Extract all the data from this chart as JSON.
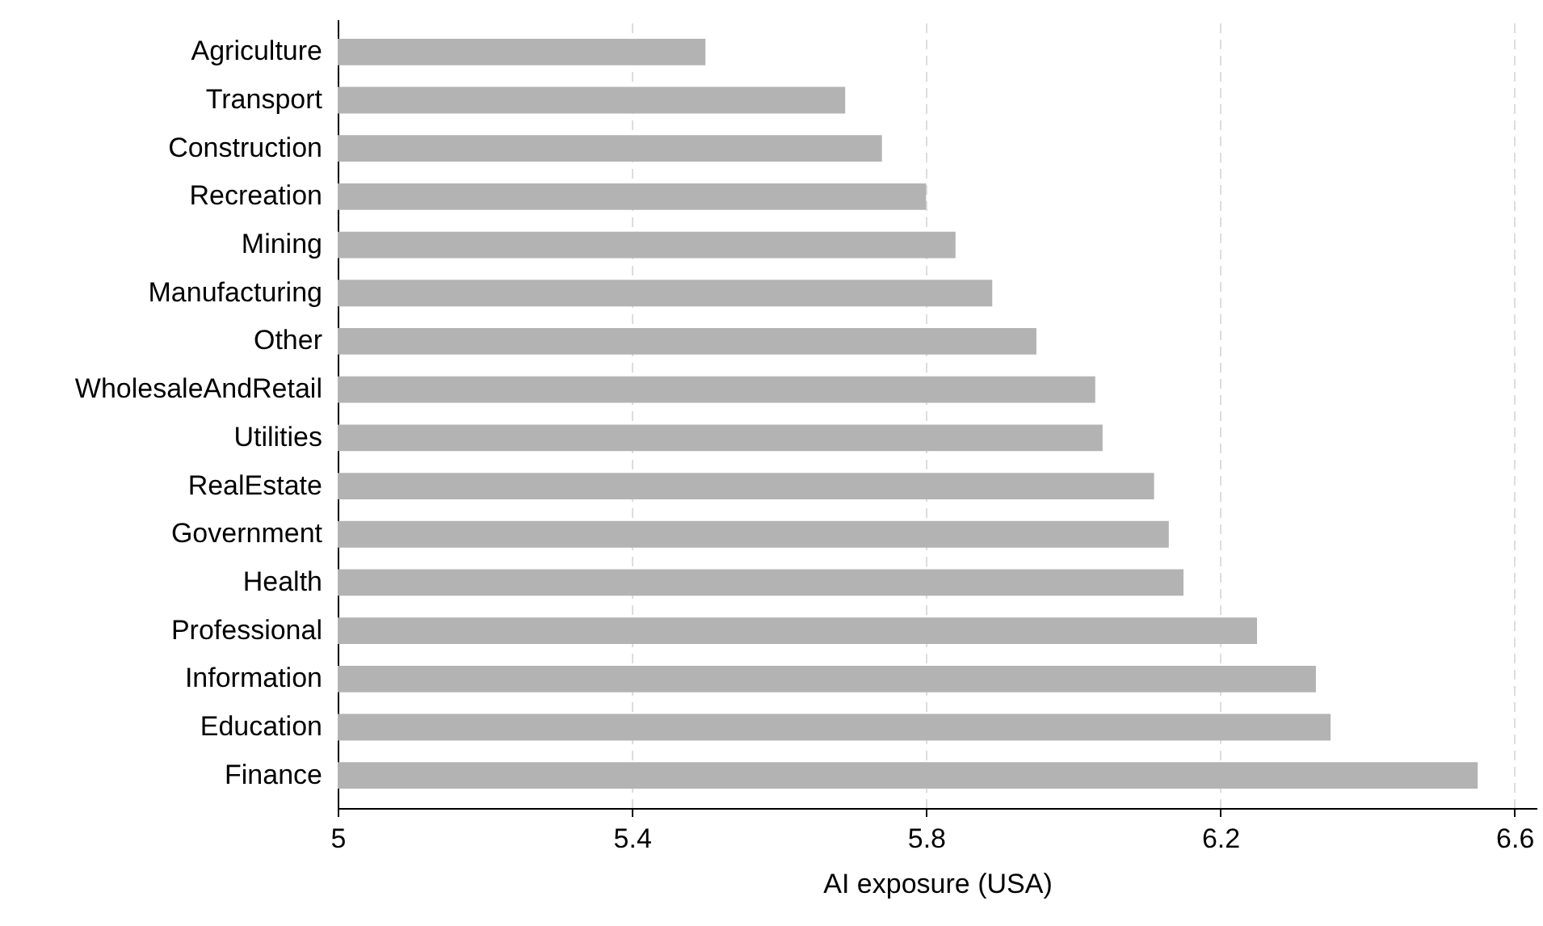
{
  "chart_data": {
    "type": "bar",
    "orientation": "horizontal",
    "xlabel": "AI exposure (USA)",
    "categories": [
      "Agriculture",
      "Transport",
      "Construction",
      "Recreation",
      "Mining",
      "Manufacturing",
      "Other",
      "WholesaleAndRetail",
      "Utilities",
      "RealEstate",
      "Government",
      "Health",
      "Professional",
      "Information",
      "Education",
      "Finance"
    ],
    "values": [
      5.5,
      5.69,
      5.74,
      5.8,
      5.84,
      5.89,
      5.95,
      6.03,
      6.04,
      6.11,
      6.13,
      6.15,
      6.25,
      6.33,
      6.35,
      6.55
    ],
    "color": "#b3b3b3",
    "xlim": [
      5,
      6.63
    ],
    "xticks": [
      5,
      5.4,
      5.8,
      6.2,
      6.6
    ],
    "grid": "x"
  }
}
